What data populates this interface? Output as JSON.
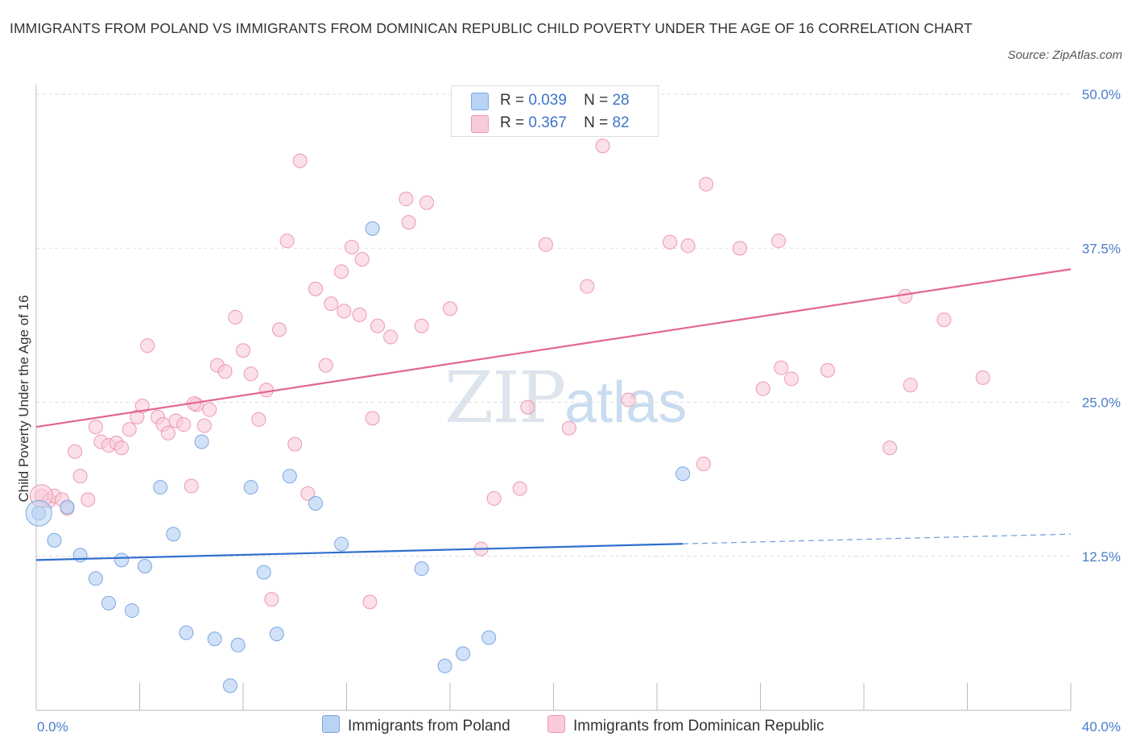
{
  "title": "IMMIGRANTS FROM POLAND VS IMMIGRANTS FROM DOMINICAN REPUBLIC CHILD POVERTY UNDER THE AGE OF 16 CORRELATION CHART",
  "source": "Source: ZipAtlas.com",
  "watermark": {
    "zip": "ZIP",
    "atlas": "atlas"
  },
  "legend": {
    "rows": [
      {
        "r_label": "R =",
        "r_value": "0.039",
        "n_label": "N =",
        "n_value": "28"
      },
      {
        "r_label": "R =",
        "r_value": "0.367",
        "n_label": "N =",
        "n_value": "82"
      }
    ]
  },
  "bottom_legend": [
    "Immigrants from Poland",
    "Immigrants from Dominican Republic"
  ],
  "colors": {
    "poland_fill": "#b9d3f4",
    "poland_stroke": "#7ba7e0",
    "poland_line": "#2f6fcf",
    "dr_fill": "#f9cbd8",
    "dr_stroke": "#ec98b1",
    "dr_line": "#e3678f",
    "grid": "#dddddd",
    "tick_label": "#4a7cc9"
  },
  "chart_data": {
    "type": "scatter",
    "xlabel": "",
    "ylabel": "Child Poverty Under the Age of 16",
    "xlim": [
      0,
      40
    ],
    "ylim": [
      0,
      50
    ],
    "x_tick_labels": [
      "0.0%",
      "40.0%"
    ],
    "y_ticks": [
      12.5,
      25.0,
      37.5,
      50.0
    ],
    "y_tick_labels": [
      "12.5%",
      "25.0%",
      "37.5%",
      "50.0%"
    ],
    "grid": true,
    "legend_position": "top-center",
    "series": [
      {
        "name": "Immigrants from Poland",
        "R": 0.039,
        "N": 28,
        "trend": {
          "x": [
            0,
            40
          ],
          "y": [
            12.2,
            14.3
          ],
          "solid_until_x": 25
        },
        "points": [
          [
            0.1,
            16.0
          ],
          [
            1.2,
            16.5
          ],
          [
            0.7,
            13.8
          ],
          [
            1.7,
            12.6
          ],
          [
            2.3,
            10.7
          ],
          [
            2.8,
            8.7
          ],
          [
            3.3,
            12.2
          ],
          [
            3.7,
            8.1
          ],
          [
            4.2,
            11.7
          ],
          [
            4.8,
            18.1
          ],
          [
            5.3,
            14.3
          ],
          [
            5.8,
            6.3
          ],
          [
            6.4,
            21.8
          ],
          [
            6.9,
            5.8
          ],
          [
            7.5,
            2.0
          ],
          [
            7.8,
            5.3
          ],
          [
            8.3,
            18.1
          ],
          [
            8.8,
            11.2
          ],
          [
            9.3,
            6.2
          ],
          [
            9.8,
            19.0
          ],
          [
            10.8,
            16.8
          ],
          [
            11.8,
            13.5
          ],
          [
            13.0,
            39.1
          ],
          [
            14.9,
            11.5
          ],
          [
            15.8,
            3.6
          ],
          [
            16.5,
            4.6
          ],
          [
            17.5,
            5.9
          ],
          [
            25.0,
            19.2
          ]
        ]
      },
      {
        "name": "Immigrants from Dominican Republic",
        "R": 0.367,
        "N": 82,
        "trend": {
          "x": [
            0,
            40
          ],
          "y": [
            23.0,
            35.8
          ]
        },
        "points": [
          [
            0.2,
            17.4
          ],
          [
            0.5,
            17.0
          ],
          [
            0.7,
            17.4
          ],
          [
            1.0,
            17.1
          ],
          [
            1.2,
            16.4
          ],
          [
            1.5,
            21.0
          ],
          [
            1.7,
            19.0
          ],
          [
            2.0,
            17.1
          ],
          [
            2.3,
            23.0
          ],
          [
            2.5,
            21.8
          ],
          [
            2.8,
            21.5
          ],
          [
            3.1,
            21.7
          ],
          [
            3.3,
            21.3
          ],
          [
            3.6,
            22.8
          ],
          [
            3.9,
            23.8
          ],
          [
            4.1,
            24.7
          ],
          [
            4.3,
            29.6
          ],
          [
            4.7,
            23.8
          ],
          [
            4.9,
            23.2
          ],
          [
            5.1,
            22.5
          ],
          [
            5.4,
            23.5
          ],
          [
            5.7,
            23.2
          ],
          [
            6.0,
            18.2
          ],
          [
            6.2,
            24.8
          ],
          [
            6.5,
            23.1
          ],
          [
            6.7,
            24.4
          ],
          [
            7.0,
            28.0
          ],
          [
            7.3,
            27.5
          ],
          [
            7.7,
            31.9
          ],
          [
            8.0,
            29.2
          ],
          [
            8.3,
            27.3
          ],
          [
            8.6,
            23.6
          ],
          [
            8.9,
            26.0
          ],
          [
            9.1,
            9.0
          ],
          [
            9.4,
            30.9
          ],
          [
            9.7,
            38.1
          ],
          [
            10.0,
            21.6
          ],
          [
            10.2,
            44.6
          ],
          [
            10.5,
            17.6
          ],
          [
            10.8,
            34.2
          ],
          [
            11.2,
            28.0
          ],
          [
            11.4,
            33.0
          ],
          [
            11.8,
            35.6
          ],
          [
            11.9,
            32.4
          ],
          [
            12.2,
            37.6
          ],
          [
            12.5,
            32.1
          ],
          [
            12.6,
            36.6
          ],
          [
            12.9,
            8.8
          ],
          [
            13.0,
            23.7
          ],
          [
            13.2,
            31.2
          ],
          [
            13.7,
            30.3
          ],
          [
            14.3,
            41.5
          ],
          [
            14.4,
            39.6
          ],
          [
            14.9,
            31.2
          ],
          [
            15.1,
            41.2
          ],
          [
            16.0,
            32.6
          ],
          [
            17.2,
            13.1
          ],
          [
            17.7,
            17.2
          ],
          [
            18.7,
            18.0
          ],
          [
            19.0,
            24.6
          ],
          [
            19.7,
            37.8
          ],
          [
            20.6,
            22.9
          ],
          [
            21.3,
            34.4
          ],
          [
            21.9,
            45.8
          ],
          [
            22.9,
            25.2
          ],
          [
            24.5,
            38.0
          ],
          [
            25.2,
            37.7
          ],
          [
            25.8,
            20.0
          ],
          [
            25.9,
            42.7
          ],
          [
            27.2,
            37.5
          ],
          [
            28.1,
            26.1
          ],
          [
            28.7,
            38.1
          ],
          [
            28.8,
            27.8
          ],
          [
            29.2,
            26.9
          ],
          [
            30.6,
            27.6
          ],
          [
            33.0,
            21.3
          ],
          [
            33.6,
            33.6
          ],
          [
            33.8,
            26.4
          ],
          [
            35.1,
            31.7
          ],
          [
            36.6,
            27.0
          ],
          [
            17.4,
            48.2
          ],
          [
            6.1,
            24.9
          ]
        ]
      }
    ]
  }
}
